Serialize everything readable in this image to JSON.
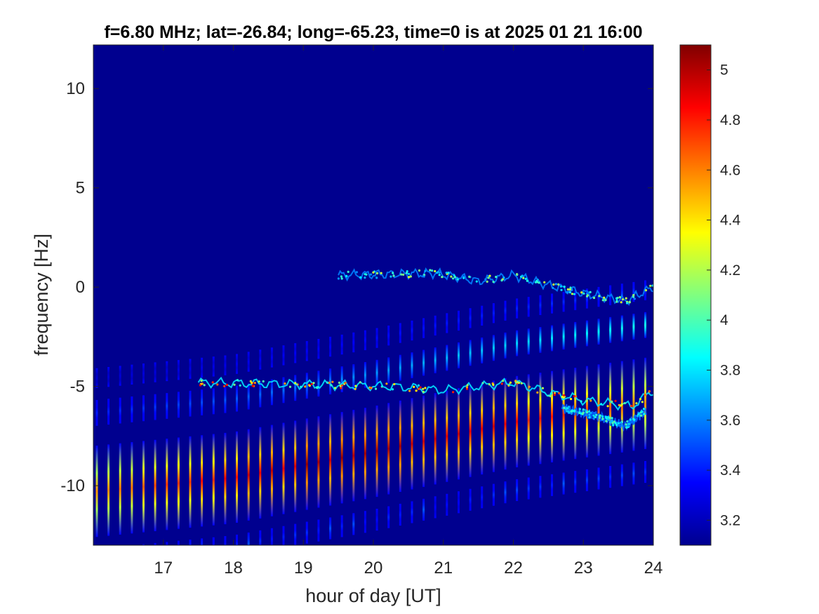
{
  "chart_data": {
    "type": "heatmap",
    "title": "f=6.80 MHz;  lat=-26.84; long=-65.23, time=0 is at 2025 01 21 16:00",
    "xlabel": "hour of day [UT]",
    "ylabel": "frequency [Hz]",
    "xlim": [
      16,
      24
    ],
    "ylim": [
      -13,
      12.2
    ],
    "xticks": [
      17,
      18,
      19,
      20,
      21,
      22,
      23,
      24
    ],
    "xtick_labels": [
      "17",
      "18",
      "19",
      "20",
      "21",
      "22",
      "23",
      "24"
    ],
    "yticks": [
      10,
      5,
      0,
      -5,
      -10
    ],
    "ytick_labels": [
      "10",
      "5",
      "0",
      "-5",
      "-10"
    ],
    "colorbar": {
      "range": [
        3.1,
        5.1
      ],
      "ticks": [
        5,
        4.8,
        4.6,
        4.4,
        4.2,
        4,
        3.8,
        3.6,
        3.4,
        3.2
      ],
      "tick_labels": [
        "5",
        "4.8",
        "4.6",
        "4.4",
        "4.2",
        "4",
        "3.8",
        "3.6",
        "3.4",
        "3.2"
      ],
      "colormap": "jet"
    },
    "background_value": 3.15,
    "grid": false,
    "sweep_columns": {
      "start_hour": 16.05,
      "step_hour": 0.1667,
      "count": 48
    },
    "main_band_center": [
      {
        "x": 16.0,
        "y": -10.3
      },
      {
        "x": 18.0,
        "y": -9.6
      },
      {
        "x": 20.0,
        "y": -8.3
      },
      {
        "x": 22.0,
        "y": -6.8
      },
      {
        "x": 24.0,
        "y": -5.8
      }
    ],
    "trace_doppler_main": [
      {
        "x": 17.5,
        "y": -4.8
      },
      {
        "x": 19.0,
        "y": -4.9
      },
      {
        "x": 20.3,
        "y": -5.0
      },
      {
        "x": 21.0,
        "y": -5.2
      },
      {
        "x": 21.5,
        "y": -5.0
      },
      {
        "x": 22.0,
        "y": -4.8
      },
      {
        "x": 22.5,
        "y": -5.3
      },
      {
        "x": 23.0,
        "y": -5.7
      },
      {
        "x": 23.7,
        "y": -6.0
      },
      {
        "x": 24.0,
        "y": -5.2
      }
    ],
    "trace_doppler_upper": [
      {
        "x": 19.5,
        "y": 0.6
      },
      {
        "x": 20.9,
        "y": 0.7
      },
      {
        "x": 21.5,
        "y": 0.3
      },
      {
        "x": 22.0,
        "y": 0.6
      },
      {
        "x": 22.5,
        "y": 0.1
      },
      {
        "x": 23.0,
        "y": -0.3
      },
      {
        "x": 23.6,
        "y": -0.7
      },
      {
        "x": 24.0,
        "y": 0.0
      }
    ],
    "trace_doppler_lower": [
      {
        "x": 22.7,
        "y": -6.1
      },
      {
        "x": 23.2,
        "y": -6.5
      },
      {
        "x": 23.6,
        "y": -7.0
      },
      {
        "x": 23.9,
        "y": -6.2
      }
    ]
  }
}
